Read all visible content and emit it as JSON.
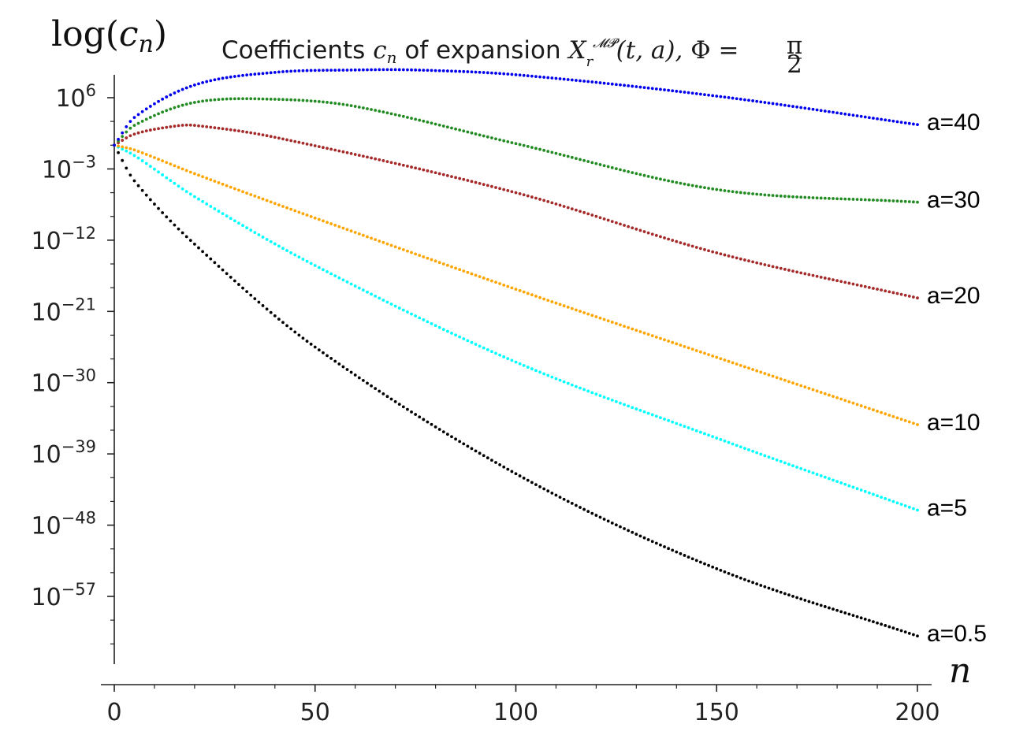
{
  "chart_data": {
    "type": "scatter",
    "title": {
      "prefix": "Coefficients ",
      "cn_symbol": "c",
      "cn_sub": "n",
      "middle": " of expansion ",
      "X_symbol": "X",
      "X_sub": "r",
      "X_sup": "𝓜𝓟",
      "args": "(t, a), ",
      "Phi": "Φ",
      "equals": " = ",
      "frac_num": "π",
      "frac_den": "2"
    },
    "ylabel": {
      "prefix": "log(",
      "symbol": "c",
      "sub": "n",
      "suffix": ")"
    },
    "xlabel": "n",
    "x_range": [
      0,
      200
    ],
    "x_ticks": [
      "0",
      "50",
      "100",
      "150",
      "200"
    ],
    "y_scale": "log",
    "y_exponent_range": [
      -65,
      9
    ],
    "y_ticks": [
      {
        "base": "10",
        "exp": "6"
      },
      {
        "base": "10",
        "exp": "−3"
      },
      {
        "base": "10",
        "exp": "−12"
      },
      {
        "base": "10",
        "exp": "−21"
      },
      {
        "base": "10",
        "exp": "−30"
      },
      {
        "base": "10",
        "exp": "−39"
      },
      {
        "base": "10",
        "exp": "−48"
      },
      {
        "base": "10",
        "exp": "−57"
      }
    ],
    "grid": false,
    "marker": "dotted",
    "n_points_per_series": [
      0,
      200
    ],
    "series": [
      {
        "name": "a=40",
        "color": "#0000ee",
        "log10_anchors": [
          [
            0,
            0
          ],
          [
            5,
            3.5
          ],
          [
            20,
            7.6
          ],
          [
            40,
            9.2
          ],
          [
            60,
            9.5
          ],
          [
            75,
            9.5
          ],
          [
            100,
            8.9
          ],
          [
            150,
            6.2
          ],
          [
            200,
            2.6
          ]
        ]
      },
      {
        "name": "a=30",
        "color": "#228b22",
        "log10_anchors": [
          [
            0,
            0
          ],
          [
            5,
            2.5
          ],
          [
            20,
            5.4
          ],
          [
            40,
            5.8
          ],
          [
            60,
            4.9
          ],
          [
            100,
            0.2
          ],
          [
            150,
            -5.6
          ],
          [
            200,
            -7.2
          ]
        ]
      },
      {
        "name": "a=20",
        "color": "#a52a2a",
        "log10_anchors": [
          [
            0,
            0
          ],
          [
            5,
            1.4
          ],
          [
            15,
            2.4
          ],
          [
            20,
            2.5
          ],
          [
            40,
            1.0
          ],
          [
            100,
            -6.0
          ],
          [
            150,
            -13.6
          ],
          [
            200,
            -19.3
          ]
        ]
      },
      {
        "name": "a=10",
        "color": "#ffa500",
        "log10_anchors": [
          [
            0,
            0
          ],
          [
            5,
            -0.6
          ],
          [
            20,
            -3.6
          ],
          [
            50,
            -9.2
          ],
          [
            100,
            -18.2
          ],
          [
            150,
            -26.8
          ],
          [
            200,
            -35.3
          ]
        ]
      },
      {
        "name": "a=5",
        "color": "#00ffff",
        "log10_anchors": [
          [
            0,
            0
          ],
          [
            5,
            -1.3
          ],
          [
            20,
            -6.5
          ],
          [
            50,
            -15.2
          ],
          [
            100,
            -27.4
          ],
          [
            150,
            -37.0
          ],
          [
            200,
            -46.1
          ]
        ]
      },
      {
        "name": "a=0.5",
        "color": "#000000",
        "log10_anchors": [
          [
            0,
            0
          ],
          [
            5,
            -4.5
          ],
          [
            20,
            -12.5
          ],
          [
            50,
            -25.5
          ],
          [
            100,
            -41.5
          ],
          [
            150,
            -53.5
          ],
          [
            200,
            -62.0
          ]
        ]
      }
    ]
  }
}
